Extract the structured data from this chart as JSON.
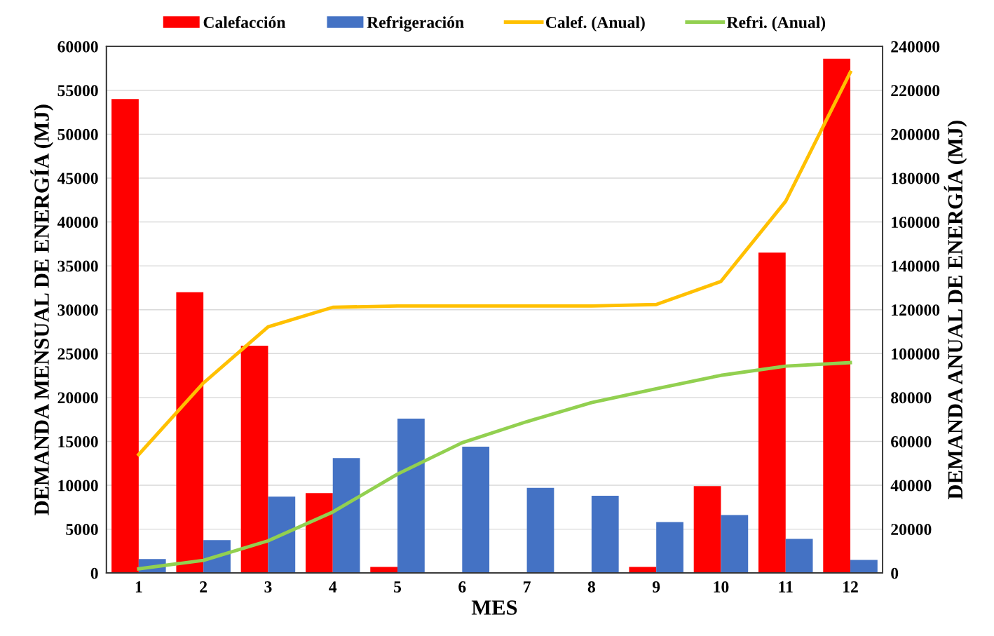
{
  "chart_data": {
    "type": "bar",
    "xlabel": "MES",
    "ylabel": "DEMANDA MENSUAL DE ENERGÍA (MJ)",
    "y2label": "DEMANDA ANUAL DE ENERGÍA (MJ)",
    "categories": [
      "1",
      "2",
      "3",
      "4",
      "5",
      "6",
      "7",
      "8",
      "9",
      "10",
      "11",
      "12"
    ],
    "series": [
      {
        "name": "Calefacción",
        "color": "#ff0000",
        "values": [
          54000,
          32000,
          25900,
          9100,
          700,
          0,
          0,
          0,
          700,
          9900,
          36500,
          58600
        ]
      },
      {
        "name": "Refrigeración",
        "color": "#4472c4",
        "values": [
          1600,
          3750,
          8700,
          13100,
          17600,
          14400,
          9700,
          8800,
          5800,
          6600,
          3900,
          1500
        ]
      },
      {
        "name": "Calef. (Anual)",
        "type": "line",
        "axis": "y2",
        "color": "#ffc000",
        "values": [
          54000,
          86600,
          112200,
          121100,
          121700,
          121700,
          121700,
          121700,
          122400,
          132900,
          169400,
          228200
        ]
      },
      {
        "name": "Refri. (Anual)",
        "type": "line",
        "axis": "y2",
        "color": "#92d050",
        "values": [
          1900,
          5800,
          14700,
          27800,
          45100,
          59400,
          69000,
          77700,
          84000,
          90100,
          94300,
          95900
        ]
      }
    ],
    "ylim": [
      0,
      60000
    ],
    "yticks": [
      0,
      5000,
      10000,
      15000,
      20000,
      25000,
      30000,
      35000,
      40000,
      45000,
      50000,
      55000,
      60000
    ],
    "y2lim": [
      0,
      240000
    ],
    "y2ticks": [
      0,
      20000,
      40000,
      60000,
      80000,
      100000,
      120000,
      140000,
      160000,
      180000,
      200000,
      220000,
      240000
    ],
    "grid": "y",
    "legend": "top"
  }
}
